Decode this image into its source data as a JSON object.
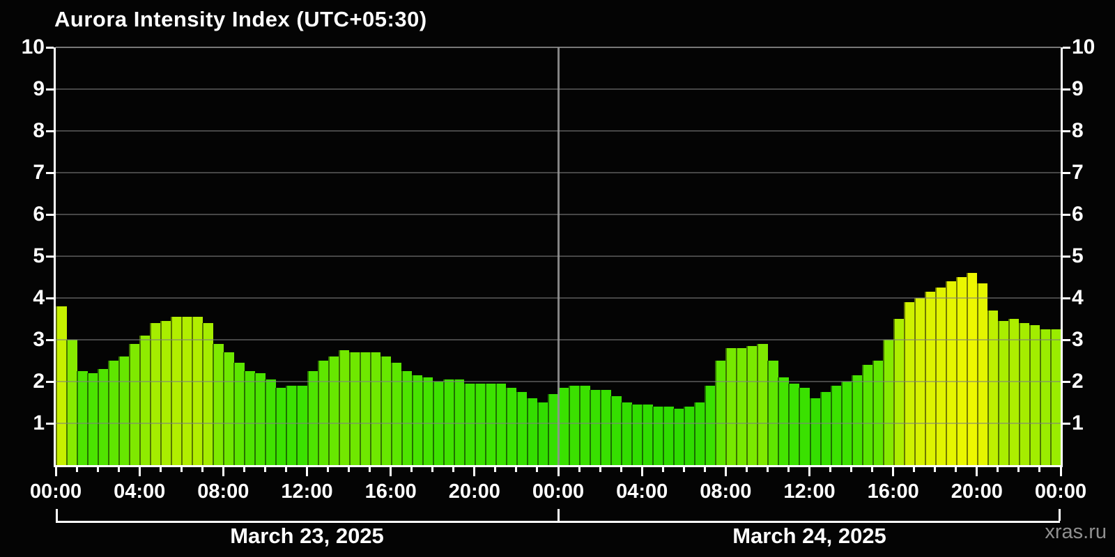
{
  "title": "Aurora Intensity Index (UTC+05:30)",
  "watermark": "xras.ru",
  "colors": {
    "background": "#040404",
    "axis": "#ffffff",
    "text": "#ffffff",
    "grid": "#808080",
    "midnight_line": "#9b9b9b",
    "watermark": "#8f8f8f",
    "bar_low_green": "#2ddb00",
    "bar_high_yellow": "#f0f700"
  },
  "chart_data": {
    "type": "bar",
    "title": "Aurora Intensity Index (UTC+05:30)",
    "interval_minutes": 30,
    "ylim": [
      0,
      10
    ],
    "y_ticks": [
      1,
      2,
      3,
      4,
      5,
      6,
      7,
      8,
      9,
      10
    ],
    "x_major_tick_hours": 4,
    "x_minor_tick_hours": 1,
    "x_tick_labels": [
      "00:00",
      "04:00",
      "08:00",
      "12:00",
      "16:00",
      "20:00",
      "00:00",
      "04:00",
      "08:00",
      "12:00",
      "16:00",
      "20:00",
      "00:00"
    ],
    "grid": true,
    "legend": "none",
    "bar_color_stops": [
      [
        1.3,
        [
          45,
          219,
          0
        ]
      ],
      [
        2.0,
        [
          61,
          226,
          0
        ]
      ],
      [
        2.5,
        [
          95,
          230,
          0
        ]
      ],
      [
        3.0,
        [
          135,
          234,
          0
        ]
      ],
      [
        3.5,
        [
          173,
          238,
          0
        ]
      ],
      [
        4.0,
        [
          215,
          242,
          0
        ]
      ],
      [
        4.65,
        [
          240,
          247,
          0
        ]
      ]
    ],
    "days": [
      {
        "date": "March 23, 2025",
        "values": [
          3.8,
          3.0,
          2.25,
          2.2,
          2.3,
          2.5,
          2.6,
          2.9,
          3.1,
          3.4,
          3.45,
          3.55,
          3.55,
          3.55,
          3.4,
          2.9,
          2.7,
          2.45,
          2.25,
          2.2,
          2.05,
          1.85,
          1.9,
          1.9,
          2.25,
          2.5,
          2.6,
          2.75,
          2.7,
          2.7,
          2.7,
          2.6,
          2.45,
          2.25,
          2.15,
          2.1,
          2.0,
          2.05,
          2.05,
          1.95,
          1.95,
          1.95,
          1.95,
          1.85,
          1.75,
          1.6,
          1.5,
          1.7
        ]
      },
      {
        "date": "March 24, 2025",
        "values": [
          1.85,
          1.9,
          1.9,
          1.8,
          1.8,
          1.65,
          1.5,
          1.45,
          1.45,
          1.4,
          1.4,
          1.35,
          1.4,
          1.5,
          1.9,
          2.5,
          2.8,
          2.8,
          2.85,
          2.9,
          2.5,
          2.1,
          1.95,
          1.85,
          1.6,
          1.75,
          1.9,
          2.0,
          2.15,
          2.4,
          2.5,
          3.0,
          3.5,
          3.9,
          4.0,
          4.15,
          4.25,
          4.4,
          4.5,
          4.6,
          4.35,
          3.7,
          3.45,
          3.5,
          3.4,
          3.35,
          3.25,
          3.25
        ]
      }
    ]
  }
}
